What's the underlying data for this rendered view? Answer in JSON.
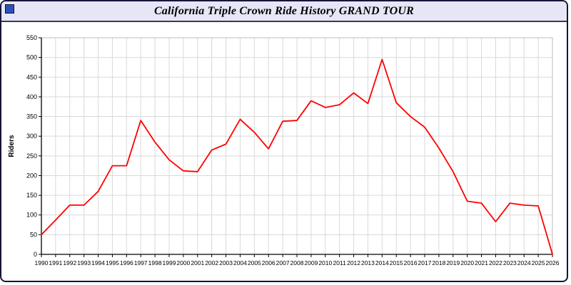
{
  "window": {
    "title": "California Triple Crown Ride History GRAND TOUR",
    "icon_color": "#2f4fbf",
    "titlebar_color": "#e6e6f7"
  },
  "chart_data": {
    "type": "line",
    "title": "California Triple Crown Ride History GRAND TOUR",
    "xlabel": "",
    "ylabel": "Riders",
    "ylim": [
      0,
      550
    ],
    "ytick_step": 50,
    "grid": true,
    "legend": "none",
    "line_color": "#ff0000",
    "grid_color": "#d9d9d9",
    "axis_color": "#000000",
    "x": [
      1990,
      1991,
      1992,
      1993,
      1994,
      1995,
      1996,
      1997,
      1998,
      1999,
      2000,
      2001,
      2002,
      2003,
      2004,
      2005,
      2006,
      2007,
      2008,
      2009,
      2010,
      2011,
      2012,
      2013,
      2014,
      2015,
      2016,
      2017,
      2018,
      2019,
      2020,
      2021,
      2022,
      2023,
      2024,
      2025,
      2026
    ],
    "values": [
      50,
      87,
      125,
      125,
      160,
      225,
      225,
      340,
      285,
      240,
      212,
      210,
      265,
      280,
      343,
      310,
      268,
      338,
      340,
      390,
      373,
      380,
      410,
      383,
      495,
      385,
      350,
      323,
      270,
      210,
      135,
      130,
      83,
      130,
      125,
      123,
      0
    ]
  }
}
